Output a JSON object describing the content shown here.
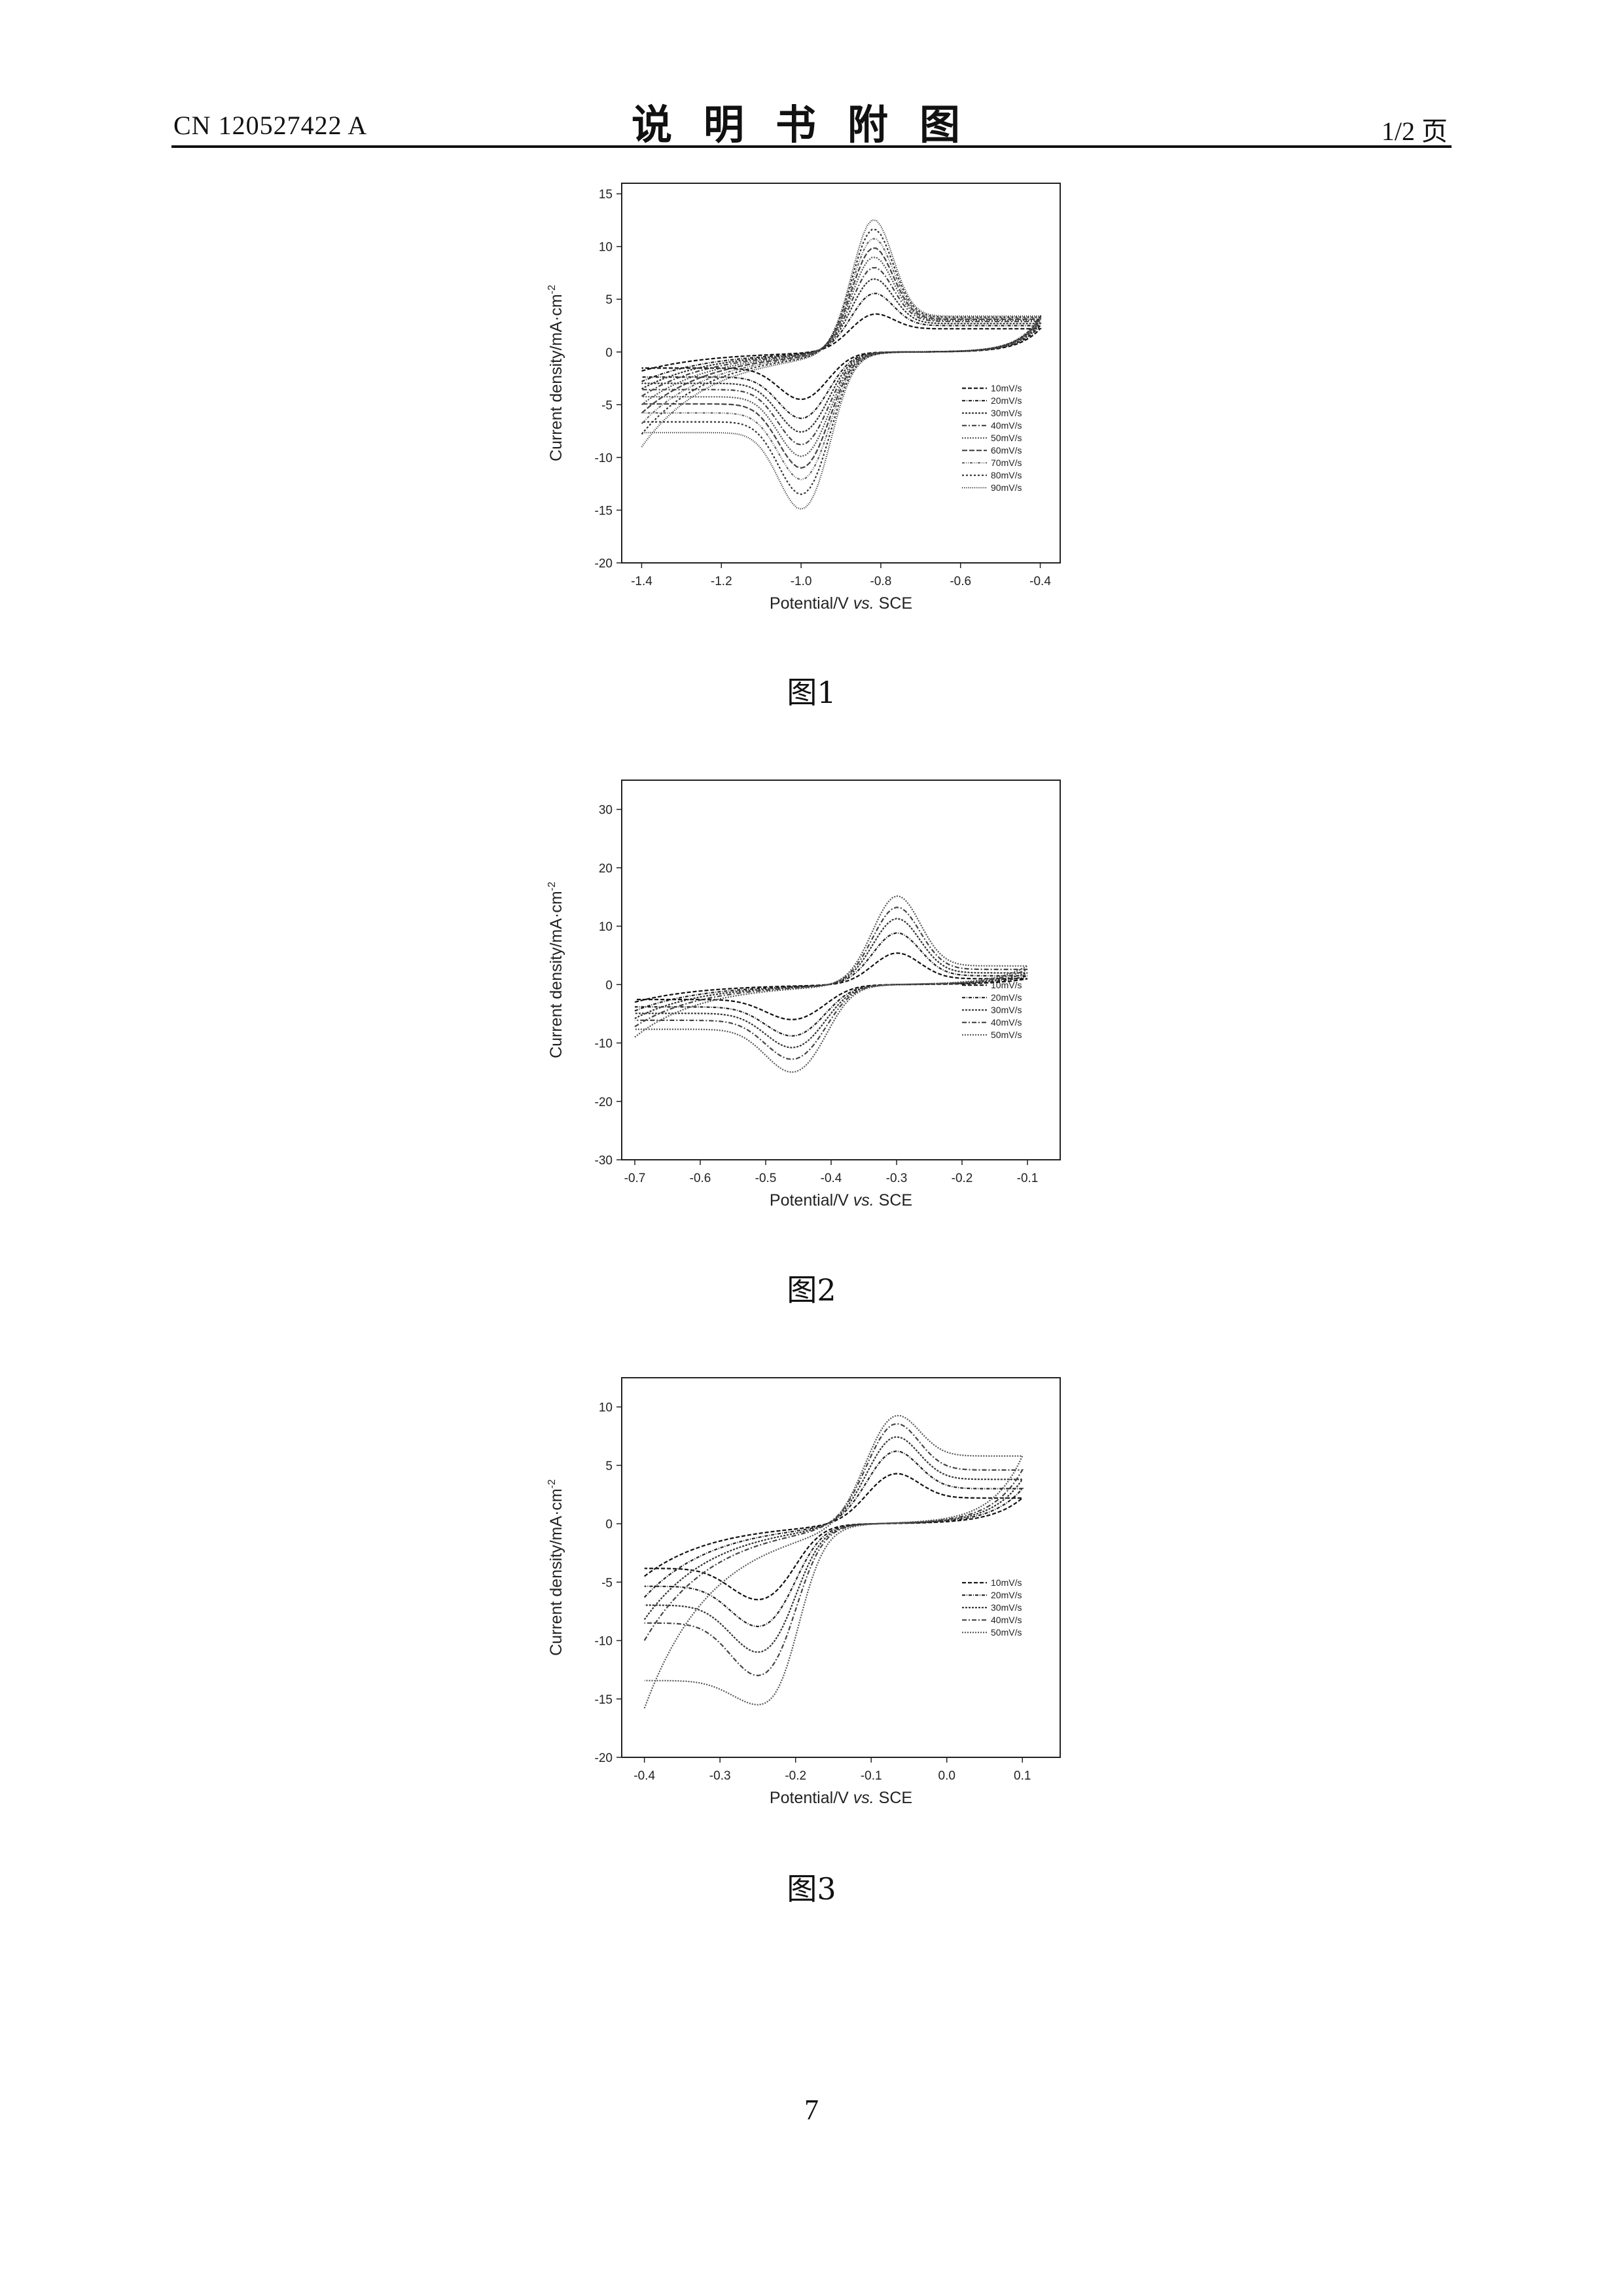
{
  "header": {
    "doc_number": "CN 120527422 A",
    "title": "说明书附图",
    "page": "1/2 页"
  },
  "footer": {
    "page_number": "7"
  },
  "figures": [
    {
      "caption": "图1"
    },
    {
      "caption": "图2"
    },
    {
      "caption": "图3"
    }
  ],
  "chart_data": [
    {
      "type": "line",
      "title": "",
      "xlabel_pre": "Potential/V ",
      "xlabel_em": "vs.",
      "xlabel_post": " SCE",
      "ylabel": "Current density/mA·cm",
      "ylabel_sup": "-2",
      "xlim": [
        -1.45,
        -0.35
      ],
      "ylim": [
        -20,
        16
      ],
      "xticks": [
        -1.4,
        -1.2,
        -1.0,
        -0.8,
        -0.6,
        -0.4
      ],
      "xtick_labels": [
        "-1.4",
        "-1.2",
        "-1.0",
        "-0.8",
        "-0.6",
        "-0.4"
      ],
      "yticks": [
        -20,
        -15,
        -10,
        -5,
        0,
        5,
        10,
        15
      ],
      "ytick_labels": [
        "-20",
        "-15",
        "-10",
        "-5",
        "0",
        "5",
        "10",
        "15"
      ],
      "grid": false,
      "legend_position": "right",
      "cv": {
        "start": -1.4,
        "end": -0.4,
        "anodic_peak_x": -0.82,
        "cathodic_peak_x": -1.0,
        "plateau_pos": 0.055,
        "plateau_neg": 0.17,
        "peak_width": 0.07
      },
      "series": [
        {
          "name": "10mV/s",
          "anodic_peak": 3.8,
          "cathodic_peak": -4.5,
          "start_current": -1.8,
          "end_current": 2.2
        },
        {
          "name": "20mV/s",
          "anodic_peak": 5.8,
          "cathodic_peak": -6.3,
          "start_current": -2.8,
          "end_current": 2.5
        },
        {
          "name": "30mV/s",
          "anodic_peak": 7.2,
          "cathodic_peak": -7.6,
          "start_current": -3.5,
          "end_current": 2.7
        },
        {
          "name": "40mV/s",
          "anodic_peak": 8.3,
          "cathodic_peak": -8.8,
          "start_current": -4.2,
          "end_current": 2.9
        },
        {
          "name": "50mV/s",
          "anodic_peak": 9.3,
          "cathodic_peak": -9.9,
          "start_current": -5.0,
          "end_current": 3.0
        },
        {
          "name": "60mV/s",
          "anodic_peak": 10.2,
          "cathodic_peak": -11.0,
          "start_current": -5.8,
          "end_current": 3.1
        },
        {
          "name": "70mV/s",
          "anodic_peak": 11.1,
          "cathodic_peak": -12.1,
          "start_current": -6.8,
          "end_current": 3.2
        },
        {
          "name": "80mV/s",
          "anodic_peak": 12.0,
          "cathodic_peak": -13.5,
          "start_current": -7.8,
          "end_current": 3.3
        },
        {
          "name": "90mV/s",
          "anodic_peak": 12.9,
          "cathodic_peak": -14.9,
          "start_current": -9.0,
          "end_current": 3.4
        }
      ]
    },
    {
      "type": "line",
      "title": "",
      "xlabel_pre": "Potential/V ",
      "xlabel_em": "vs.",
      "xlabel_post": " SCE",
      "ylabel": "Current density/mA·cm",
      "ylabel_sup": "-2",
      "xlim": [
        -0.72,
        -0.05
      ],
      "ylim": [
        -30,
        35
      ],
      "xticks": [
        -0.7,
        -0.6,
        -0.5,
        -0.4,
        -0.3,
        -0.2,
        -0.1
      ],
      "xtick_labels": [
        "-0.7",
        "-0.6",
        "-0.5",
        "-0.4",
        "-0.3",
        "-0.2",
        "-0.1"
      ],
      "yticks": [
        -30,
        -20,
        -10,
        0,
        10,
        20,
        30
      ],
      "ytick_labels": [
        "-30",
        "-20",
        "-10",
        "0",
        "10",
        "20",
        "30"
      ],
      "grid": false,
      "legend_position": "right",
      "cv": {
        "start": -0.7,
        "end": -0.1,
        "anodic_peak_x": -0.3,
        "cathodic_peak_x": -0.46,
        "plateau_pos": 0.05,
        "plateau_neg": 0.1,
        "peak_width": 0.05
      },
      "series": [
        {
          "name": "10mV/s",
          "anodic_peak": 5.5,
          "cathodic_peak": -6.0,
          "start_current": -3.0,
          "end_current": 1.0
        },
        {
          "name": "20mV/s",
          "anodic_peak": 9.0,
          "cathodic_peak": -8.8,
          "start_current": -4.5,
          "end_current": 1.5
        },
        {
          "name": "30mV/s",
          "anodic_peak": 11.5,
          "cathodic_peak": -10.8,
          "start_current": -5.8,
          "end_current": 2.0
        },
        {
          "name": "40mV/s",
          "anodic_peak": 13.5,
          "cathodic_peak": -12.8,
          "start_current": -7.2,
          "end_current": 2.6
        },
        {
          "name": "50mV/s",
          "anodic_peak": 15.5,
          "cathodic_peak": -15.0,
          "start_current": -9.0,
          "end_current": 3.2
        }
      ]
    },
    {
      "type": "line",
      "title": "",
      "xlabel_pre": "Potential/V ",
      "xlabel_em": "vs.",
      "xlabel_post": " SCE",
      "ylabel": "Current density/mA·cm",
      "ylabel_sup": "-2",
      "xlim": [
        -0.43,
        0.15
      ],
      "ylim": [
        -20,
        12.5
      ],
      "xticks": [
        -0.4,
        -0.3,
        -0.2,
        -0.1,
        0.0,
        0.1
      ],
      "xtick_labels": [
        "-0.4",
        "-0.3",
        "-0.2",
        "-0.1",
        "0.0",
        "0.1"
      ],
      "yticks": [
        -20,
        -15,
        -10,
        -5,
        0,
        5,
        10
      ],
      "ytick_labels": [
        "-20",
        "-15",
        "-10",
        "-5",
        "0",
        "5",
        "10"
      ],
      "grid": false,
      "legend_position": "right",
      "cv": {
        "start": -0.4,
        "end": 0.1,
        "anodic_peak_x": -0.07,
        "cathodic_peak_x": -0.25,
        "plateau_pos": 0.04,
        "plateau_neg": 0.09,
        "peak_width": 0.045
      },
      "series": [
        {
          "name": "10mV/s",
          "anodic_peak": 4.5,
          "cathodic_peak": -6.5,
          "start_current": -4.5,
          "end_current": 2.2
        },
        {
          "name": "20mV/s",
          "anodic_peak": 6.5,
          "cathodic_peak": -8.8,
          "start_current": -6.3,
          "end_current": 3.0
        },
        {
          "name": "30mV/s",
          "anodic_peak": 7.8,
          "cathodic_peak": -11.0,
          "start_current": -8.2,
          "end_current": 3.8
        },
        {
          "name": "40mV/s",
          "anodic_peak": 9.0,
          "cathodic_peak": -13.0,
          "start_current": -10.0,
          "end_current": 4.6
        },
        {
          "name": "50mV/s",
          "anodic_peak": 9.8,
          "cathodic_peak": -15.5,
          "start_current": -15.8,
          "end_current": 5.8
        }
      ]
    }
  ]
}
